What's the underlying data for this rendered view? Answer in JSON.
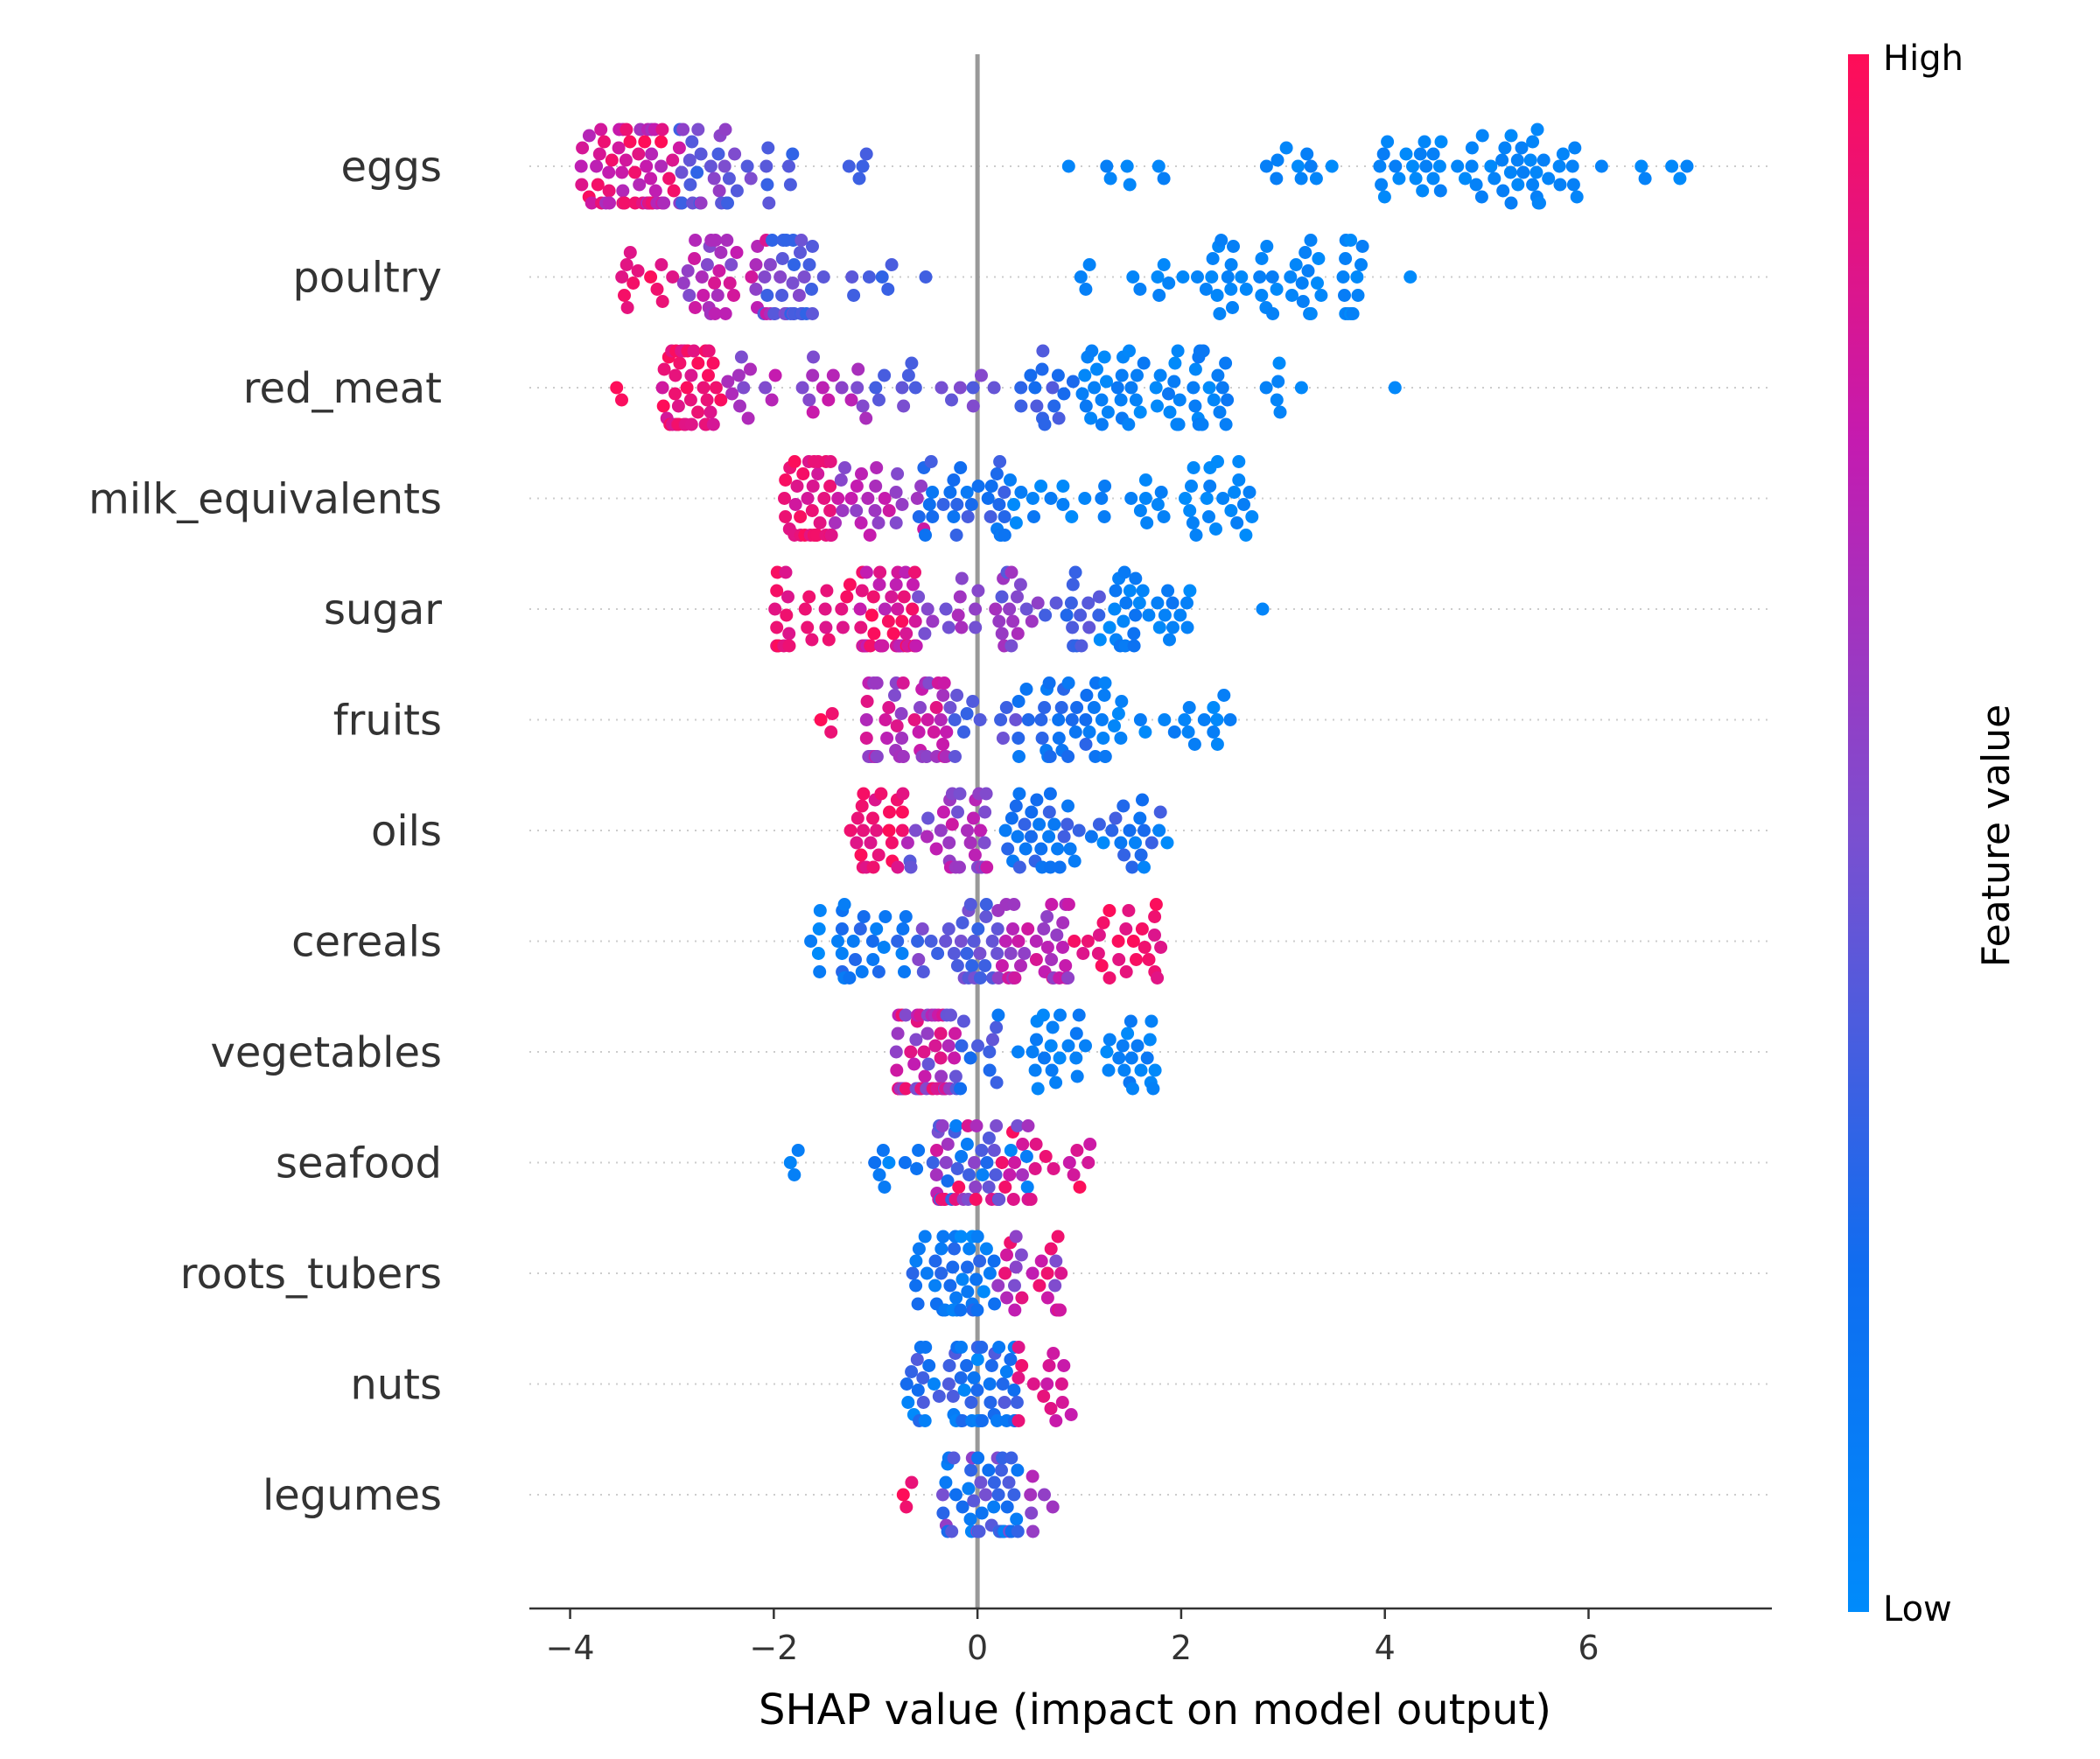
{
  "chart_data": {
    "type": "scatter",
    "subtype": "shap-beeswarm",
    "xlabel": "SHAP value (impact on model output)",
    "xlim": [
      -4.4,
      7.8
    ],
    "xticks": [
      -4,
      -2,
      0,
      2,
      4,
      6
    ],
    "xtick_labels": [
      "−4",
      "−2",
      "0",
      "2",
      "4",
      "6"
    ],
    "colorbar": {
      "title": "Feature value",
      "high_label": "High",
      "low_label": "Low",
      "high_color": "#ff0d57",
      "low_color": "#008bfb"
    },
    "zero_line_color": "#999999",
    "features": [
      {
        "name": "eggs",
        "groups": [
          {
            "min": -3.9,
            "max": -2.9,
            "n": 60,
            "f": [
              0.6,
              1.0
            ]
          },
          {
            "min": -3.0,
            "max": -2.2,
            "n": 30,
            "f": [
              0.3,
              0.6
            ]
          },
          {
            "min": -2.2,
            "max": -1.7,
            "n": 7,
            "f": [
              0.3,
              0.45
            ]
          },
          {
            "min": -1.3,
            "max": -1.0,
            "n": 4,
            "f": [
              0.3,
              0.4
            ]
          },
          {
            "min": 0.85,
            "max": 1.9,
            "n": 7,
            "f": [
              0.0,
              0.1
            ]
          },
          {
            "min": 2.7,
            "max": 3.5,
            "n": 10,
            "f": [
              0.0,
              0.1
            ]
          },
          {
            "min": 3.9,
            "max": 5.9,
            "n": 55,
            "f": [
              0.0,
              0.1
            ]
          },
          {
            "min": 6.1,
            "max": 7.2,
            "n": 6,
            "f": [
              0.0,
              0.08
            ]
          }
        ]
      },
      {
        "name": "poultry",
        "groups": [
          {
            "min": -3.5,
            "max": -2.9,
            "n": 12,
            "f": [
              0.85,
              1.0
            ]
          },
          {
            "min": -2.9,
            "max": -2.0,
            "n": 35,
            "f": [
              0.5,
              0.85
            ]
          },
          {
            "min": -2.1,
            "max": -1.6,
            "n": 30,
            "f": [
              0.3,
              0.55
            ]
          },
          {
            "min": -1.6,
            "max": -0.4,
            "n": 8,
            "f": [
              0.3,
              0.45
            ]
          },
          {
            "min": 0.9,
            "max": 2.0,
            "n": 9,
            "f": [
              0.0,
              0.1
            ]
          },
          {
            "min": 2.0,
            "max": 3.8,
            "n": 50,
            "f": [
              0.0,
              0.1
            ]
          },
          {
            "min": 4.1,
            "max": 4.4,
            "n": 1,
            "f": [
              0.0,
              0.05
            ]
          }
        ]
      },
      {
        "name": "red_meat",
        "groups": [
          {
            "min": -3.8,
            "max": -3.4,
            "n": 2,
            "f": [
              0.9,
              1.0
            ]
          },
          {
            "min": -3.1,
            "max": -2.5,
            "n": 40,
            "f": [
              0.8,
              1.0
            ]
          },
          {
            "min": -2.5,
            "max": -1.0,
            "n": 25,
            "f": [
              0.5,
              0.8
            ]
          },
          {
            "min": -1.0,
            "max": 0.3,
            "n": 15,
            "f": [
              0.35,
              0.55
            ]
          },
          {
            "min": 0.4,
            "max": 1.0,
            "n": 15,
            "f": [
              0.2,
              0.4
            ]
          },
          {
            "min": 1.0,
            "max": 2.5,
            "n": 55,
            "f": [
              0.0,
              0.15
            ]
          },
          {
            "min": 2.5,
            "max": 3.2,
            "n": 6,
            "f": [
              0.0,
              0.1
            ]
          },
          {
            "min": 4.1,
            "max": 4.1,
            "n": 1,
            "f": [
              0.0,
              0.05
            ]
          }
        ]
      },
      {
        "name": "milk_equivalents",
        "groups": [
          {
            "min": -1.9,
            "max": -1.4,
            "n": 35,
            "f": [
              0.8,
              1.0
            ]
          },
          {
            "min": -1.4,
            "max": -0.5,
            "n": 25,
            "f": [
              0.5,
              0.8
            ]
          },
          {
            "min": -0.6,
            "max": 0.3,
            "n": 30,
            "f": [
              0.1,
              0.4
            ]
          },
          {
            "min": 0.3,
            "max": 1.3,
            "n": 15,
            "f": [
              0.0,
              0.15
            ]
          },
          {
            "min": 1.4,
            "max": 2.8,
            "n": 30,
            "f": [
              0.0,
              0.1
            ]
          }
        ]
      },
      {
        "name": "sugar",
        "groups": [
          {
            "min": -2.0,
            "max": -1.2,
            "n": 25,
            "f": [
              0.85,
              1.0
            ]
          },
          {
            "min": -1.2,
            "max": -0.6,
            "n": 45,
            "f": [
              0.7,
              1.0
            ]
          },
          {
            "min": -0.6,
            "max": 0.6,
            "n": 30,
            "f": [
              0.4,
              0.7
            ]
          },
          {
            "min": 0.6,
            "max": 1.2,
            "n": 15,
            "f": [
              0.25,
              0.45
            ]
          },
          {
            "min": 1.2,
            "max": 2.1,
            "n": 30,
            "f": [
              0.0,
              0.2
            ]
          },
          {
            "min": 2.8,
            "max": 2.8,
            "n": 1,
            "f": [
              0.0,
              0.05
            ]
          }
        ]
      },
      {
        "name": "fruits",
        "groups": [
          {
            "min": -1.6,
            "max": -1.4,
            "n": 3,
            "f": [
              0.9,
              1.0
            ]
          },
          {
            "min": -1.1,
            "max": -0.3,
            "n": 50,
            "f": [
              0.5,
              0.9
            ]
          },
          {
            "min": -0.3,
            "max": 0.4,
            "n": 12,
            "f": [
              0.3,
              0.5
            ]
          },
          {
            "min": 0.4,
            "max": 1.2,
            "n": 30,
            "f": [
              0.1,
              0.3
            ]
          },
          {
            "min": 1.2,
            "max": 2.5,
            "n": 25,
            "f": [
              0.0,
              0.15
            ]
          }
        ]
      },
      {
        "name": "oils",
        "groups": [
          {
            "min": -1.3,
            "max": -0.7,
            "n": 25,
            "f": [
              0.85,
              1.0
            ]
          },
          {
            "min": -0.7,
            "max": 0.2,
            "n": 35,
            "f": [
              0.4,
              0.8
            ]
          },
          {
            "min": 0.2,
            "max": 1.0,
            "n": 30,
            "f": [
              0.1,
              0.35
            ]
          },
          {
            "min": 1.0,
            "max": 1.9,
            "n": 20,
            "f": [
              0.0,
              0.4
            ]
          }
        ]
      },
      {
        "name": "cereals",
        "groups": [
          {
            "min": -1.8,
            "max": -1.4,
            "n": 5,
            "f": [
              0.0,
              0.15
            ]
          },
          {
            "min": -1.4,
            "max": -0.6,
            "n": 25,
            "f": [
              0.05,
              0.3
            ]
          },
          {
            "min": -0.6,
            "max": 0.2,
            "n": 30,
            "f": [
              0.3,
              0.55
            ]
          },
          {
            "min": 0.2,
            "max": 0.9,
            "n": 35,
            "f": [
              0.55,
              0.85
            ]
          },
          {
            "min": 0.9,
            "max": 1.8,
            "n": 25,
            "f": [
              0.85,
              1.0
            ]
          }
        ]
      },
      {
        "name": "vegetables",
        "groups": [
          {
            "min": -0.8,
            "max": -0.2,
            "n": 60,
            "f": [
              0.4,
              0.95
            ]
          },
          {
            "min": -0.2,
            "max": 0.2,
            "n": 10,
            "f": [
              0.2,
              0.45
            ]
          },
          {
            "min": 0.2,
            "max": 1.75,
            "n": 40,
            "f": [
              0.0,
              0.15
            ]
          }
        ]
      },
      {
        "name": "seafood",
        "groups": [
          {
            "min": -1.9,
            "max": -1.7,
            "n": 3,
            "f": [
              0.0,
              0.1
            ]
          },
          {
            "min": -1.2,
            "max": -0.5,
            "n": 8,
            "f": [
              0.0,
              0.2
            ]
          },
          {
            "min": -0.5,
            "max": 0.6,
            "n": 60,
            "f": [
              0.0,
              1.0
            ]
          },
          {
            "min": 0.6,
            "max": 1.15,
            "n": 8,
            "f": [
              0.75,
              1.0
            ]
          }
        ]
      },
      {
        "name": "roots_tubers",
        "groups": [
          {
            "min": -0.65,
            "max": 0.2,
            "n": 40,
            "f": [
              0.0,
              0.3
            ]
          },
          {
            "min": 0.2,
            "max": 0.85,
            "n": 25,
            "f": [
              0.5,
              0.95
            ]
          }
        ]
      },
      {
        "name": "nuts",
        "groups": [
          {
            "min": -0.7,
            "max": 0.4,
            "n": 55,
            "f": [
              0.0,
              0.4
            ]
          },
          {
            "min": 0.4,
            "max": 1.0,
            "n": 15,
            "f": [
              0.75,
              1.0
            ]
          }
        ]
      },
      {
        "name": "legumes",
        "groups": [
          {
            "min": -0.75,
            "max": -0.55,
            "n": 3,
            "f": [
              0.85,
              1.0
            ]
          },
          {
            "min": -0.35,
            "max": 0.4,
            "n": 45,
            "f": [
              0.0,
              0.6
            ]
          },
          {
            "min": 0.4,
            "max": 0.75,
            "n": 6,
            "f": [
              0.4,
              0.7
            ]
          }
        ]
      }
    ]
  }
}
